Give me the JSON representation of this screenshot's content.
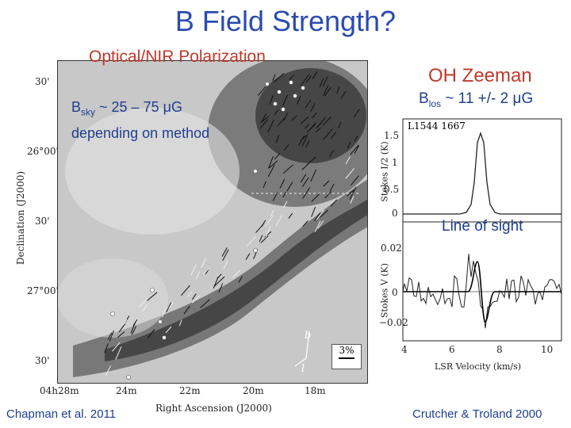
{
  "title": "B Field Strength?",
  "left_panel": {
    "heading": "Optical/NIR Polarization",
    "bsky_prefix": "B",
    "bsky_sub": "sky",
    "bsky_rest": " ~ 25 – 75 μG",
    "method_note": "depending on method",
    "dec_ticks": [
      "30'",
      "26°00'",
      "30'",
      "27°00'",
      "30'"
    ],
    "ra_ticks": [
      "04h28m",
      "24m",
      "22m",
      "20m",
      "18m"
    ],
    "ylabel": "Declination (J2000)",
    "xlabel": "Right Ascension (J2000)",
    "scale_label": "3%",
    "compass_b": "b",
    "compass_l": "l"
  },
  "right_panel": {
    "heading": "OH Zeeman",
    "blos_prefix": "B",
    "blos_sub": "los",
    "blos_rest": " ~ 11 +/- 2 μG",
    "source_label": "L1544  1667",
    "top_ylabel": "Stokes I/2 (K)",
    "top_yticks": [
      "0",
      "0.5",
      "1",
      "1.5"
    ],
    "bottom_ylabel": "Stokes V (K)",
    "bottom_yticks": [
      "0.02",
      "0",
      "−0.02"
    ],
    "xticks": [
      "4",
      "6",
      "8",
      "10"
    ],
    "xlabel": "LSR Velocity (km/s)",
    "line_of_sight": "Line of sight"
  },
  "citations": {
    "left": "Chapman et al. 2011",
    "right": "Crutcher & Troland 2000"
  },
  "colors": {
    "title": "#2b4bb0",
    "heading_red": "#c0392b",
    "text_blue": "#1f3f8f"
  }
}
